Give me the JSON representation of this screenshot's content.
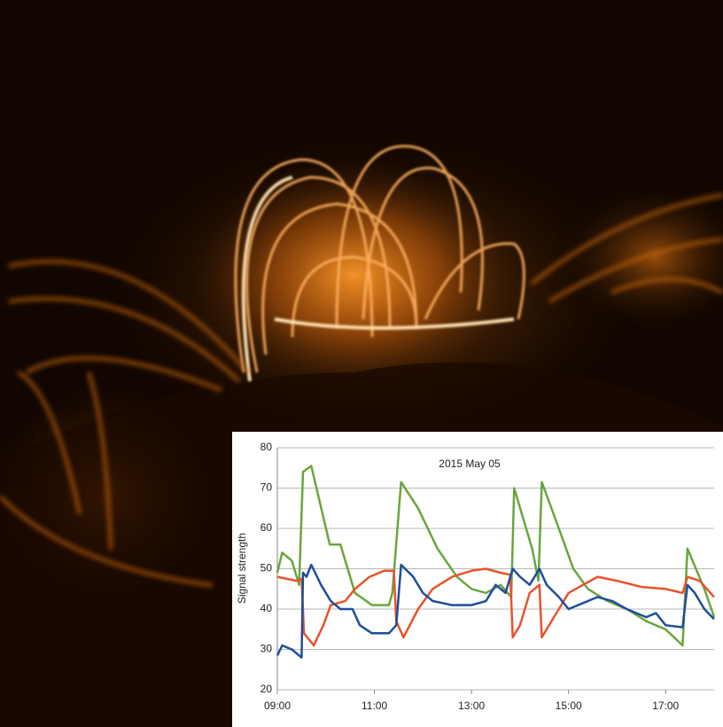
{
  "chart_data": {
    "type": "line",
    "title": "2015 May 05",
    "ylabel": "Signal strength",
    "xlim": [
      9,
      18
    ],
    "ylim": [
      20,
      80
    ],
    "xticks": [
      {
        "value": 9,
        "label": "09:00"
      },
      {
        "value": 11,
        "label": "11:00"
      },
      {
        "value": 13,
        "label": "13:00"
      },
      {
        "value": 15,
        "label": "15:00"
      },
      {
        "value": 17,
        "label": "17:00"
      }
    ],
    "yticks": [
      20,
      30,
      40,
      50,
      60,
      70,
      80
    ],
    "grid": true,
    "series": [
      {
        "color": "#6aa53e",
        "x": [
          9.0,
          9.1,
          9.3,
          9.45,
          9.53,
          9.7,
          10.08,
          10.3,
          10.6,
          10.95,
          11.3,
          11.37,
          11.55,
          11.9,
          12.3,
          12.7,
          13.0,
          13.3,
          13.6,
          13.82,
          13.88,
          14.25,
          14.38,
          14.45,
          14.8,
          15.1,
          15.4,
          15.8,
          16.2,
          16.6,
          17.0,
          17.35,
          17.45,
          17.8,
          18.0
        ],
        "values": [
          49,
          54,
          52,
          46,
          74,
          75.5,
          56,
          56,
          44,
          41,
          41,
          44,
          71.5,
          65,
          55,
          48,
          45,
          44,
          46,
          43,
          70,
          55,
          47,
          71.5,
          60,
          50,
          45,
          42,
          40,
          37,
          35,
          31,
          55,
          45,
          38
        ]
      },
      {
        "color": "#e8532b",
        "x": [
          9.0,
          9.4,
          9.5,
          9.55,
          9.75,
          9.95,
          10.1,
          10.4,
          10.6,
          10.9,
          11.2,
          11.4,
          11.45,
          11.6,
          11.9,
          12.2,
          12.6,
          13.0,
          13.3,
          13.6,
          13.8,
          13.85,
          14.0,
          14.2,
          14.4,
          14.45,
          14.7,
          15.0,
          15.3,
          15.6,
          16.0,
          16.5,
          17.0,
          17.35,
          17.45,
          17.7,
          18.0
        ],
        "values": [
          48,
          47,
          47.5,
          34,
          31,
          36,
          41,
          42,
          45,
          48,
          49.5,
          49.5,
          37,
          33,
          40,
          45,
          48,
          49.5,
          50,
          49,
          48.5,
          33,
          36,
          44,
          46,
          33,
          38,
          44,
          46,
          48,
          47,
          45.5,
          45,
          44,
          48,
          47,
          43
        ]
      },
      {
        "color": "#1f4e9a",
        "x": [
          9.0,
          9.1,
          9.3,
          9.5,
          9.53,
          9.6,
          9.7,
          9.9,
          10.1,
          10.3,
          10.55,
          10.7,
          10.95,
          11.3,
          11.45,
          11.55,
          11.8,
          12.0,
          12.2,
          12.6,
          13.0,
          13.3,
          13.5,
          13.7,
          13.85,
          14.0,
          14.2,
          14.4,
          14.55,
          14.8,
          15.0,
          15.3,
          15.6,
          15.9,
          16.2,
          16.6,
          16.8,
          17.0,
          17.35,
          17.45,
          17.6,
          17.8,
          18.0
        ],
        "values": [
          28.5,
          31,
          30,
          28,
          49,
          48,
          51,
          46,
          42,
          40,
          40,
          36,
          34,
          34,
          36,
          51,
          48,
          44,
          42,
          41,
          41,
          42,
          46,
          44,
          50,
          48,
          46,
          50,
          46,
          43,
          40,
          41.5,
          43,
          42,
          40,
          38,
          39,
          36,
          35.5,
          46,
          44,
          40,
          37.5
        ]
      }
    ]
  }
}
